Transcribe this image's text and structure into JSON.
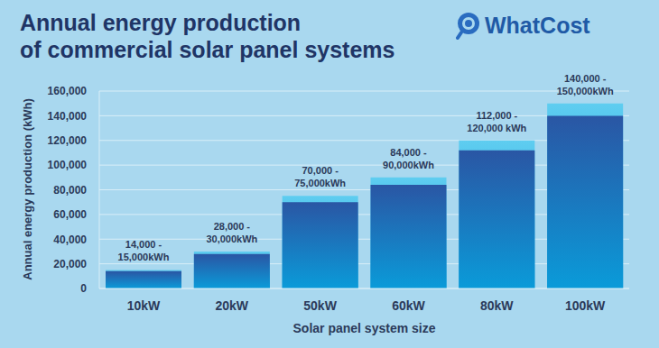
{
  "chart_data": {
    "type": "bar",
    "title": [
      "Annual energy production",
      "of commercial solar panel systems"
    ],
    "logo": "WhatCost",
    "x_label": "Solar panel system size",
    "y_label": "Annual energy production (kWh)",
    "categories": [
      "10kW",
      "20kW",
      "50kW",
      "60kW",
      "80kW",
      "100kW"
    ],
    "series": [
      {
        "color": "#2a56a4",
        "values": [
          14000,
          28000,
          70000,
          84000,
          112000,
          140000
        ]
      },
      {
        "color": "#5fcdf0",
        "values": [
          15000,
          30000,
          75000,
          90000,
          120000,
          150000
        ]
      }
    ],
    "value_labels": [
      "14,000 - 15,000kWh",
      "28,000 - 30,000kWh",
      "70,000 - 75,000kWh",
      "84,000 - 90,000kWh",
      "112,000 - 120,000 kWh",
      "140,000 - 150,000kWh"
    ],
    "data_labels": true,
    "ylim": [
      0,
      160000
    ],
    "yticks": [
      0,
      {
        "value": 20000,
        "label": "20,000"
      },
      {
        "value": 40000,
        "label": "40,000"
      },
      {
        "value": 60000,
        "label": "60,000"
      },
      {
        "value": 80000,
        "label": "80,000"
      },
      {
        "value": 100000,
        "label": "100,000"
      },
      {
        "value": 120000,
        "label": "120,000"
      },
      {
        "value": 140000,
        "label": "140,000"
      },
      {
        "value": 160000,
        "label": "160,000"
      }
    ],
    "grid": true
  }
}
